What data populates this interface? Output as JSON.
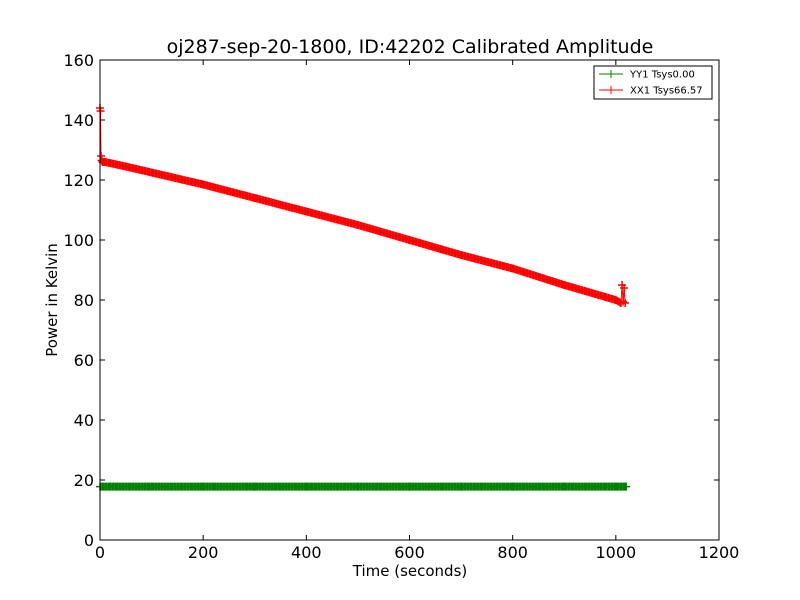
{
  "chart_data": {
    "type": "line",
    "title": "oj287-sep-20-1800, ID:42202 Calibrated Amplitude",
    "xlabel": "Time (seconds)",
    "ylabel": "Power in Kelvin",
    "xlim": [
      0,
      1200
    ],
    "ylim": [
      0,
      160
    ],
    "xticks": [
      "0",
      "200",
      "400",
      "600",
      "800",
      "1000",
      "1200"
    ],
    "yticks": [
      "0",
      "20",
      "40",
      "60",
      "80",
      "100",
      "120",
      "140",
      "160"
    ],
    "grid": false,
    "legend_position": "top-right",
    "series": [
      {
        "name": "YY1 Tsys0.00",
        "color": "#008000",
        "x": [
          0,
          100,
          200,
          300,
          400,
          500,
          600,
          700,
          800,
          900,
          1000,
          1020
        ],
        "y": [
          17.8,
          17.8,
          17.8,
          17.8,
          17.8,
          17.8,
          17.8,
          17.8,
          17.8,
          17.8,
          17.8,
          17.8
        ]
      },
      {
        "name": "XX1 Tsys66.57",
        "color": "#ff0000",
        "x": [
          0,
          1,
          2,
          3,
          5,
          10,
          50,
          100,
          200,
          300,
          400,
          500,
          600,
          700,
          800,
          900,
          1000,
          1010,
          1012,
          1014,
          1016,
          1018
        ],
        "y": [
          144,
          143,
          128,
          126.5,
          126,
          126,
          124.5,
          122.5,
          118.5,
          114,
          109.5,
          105,
          100,
          95,
          90.5,
          85,
          80,
          79,
          85,
          79.5,
          84,
          79
        ]
      }
    ]
  }
}
